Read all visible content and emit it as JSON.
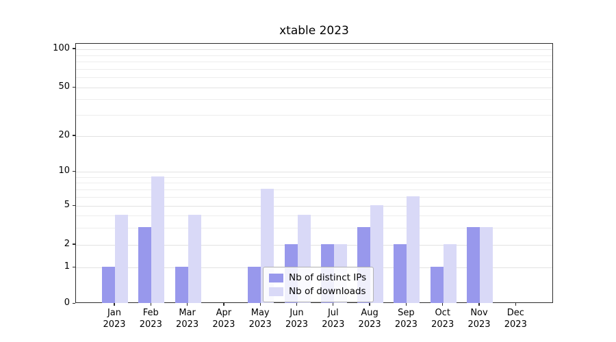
{
  "chart_data": {
    "type": "bar",
    "title": "xtable 2023",
    "categories": [
      "Jan 2023",
      "Feb 2023",
      "Mar 2023",
      "Apr 2023",
      "May 2023",
      "Jun 2023",
      "Jul 2023",
      "Aug 2023",
      "Sep 2023",
      "Oct 2023",
      "Nov 2023",
      "Dec 2023"
    ],
    "series": [
      {
        "name": "Nb of distinct IPs",
        "color": "#9898ec",
        "values": [
          1,
          3,
          1,
          0,
          1,
          2,
          2,
          3,
          2,
          1,
          3,
          0
        ]
      },
      {
        "name": "Nb of downloads",
        "color": "#d9d9f7",
        "values": [
          4,
          9,
          4,
          0,
          7,
          4,
          2,
          5,
          6,
          2,
          3,
          0
        ]
      }
    ],
    "yscale": "symlog",
    "ylim": [
      0,
      100
    ],
    "yticks": [
      100,
      50,
      20,
      10,
      5,
      2,
      1,
      0
    ],
    "minor_gridlines": [
      3,
      4,
      6,
      7,
      8,
      9,
      30,
      40,
      60,
      70,
      80,
      90
    ],
    "grid": true,
    "legend_position": "lower center"
  }
}
